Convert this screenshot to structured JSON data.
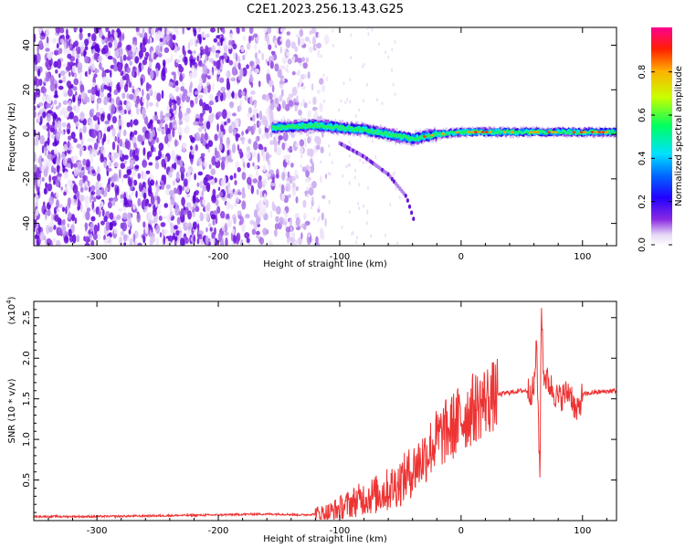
{
  "title": "C2E1.2023.256.13.43.G25",
  "chart_data": [
    {
      "type": "heatmap",
      "xlabel": "Height of straight line (km)",
      "ylabel": "Frequency (Hz)",
      "xlim": [
        -352,
        128
      ],
      "ylim": [
        -50,
        48
      ],
      "x_ticks": [
        -300,
        -200,
        -100,
        0,
        100
      ],
      "y_ticks": [
        -40,
        -20,
        0,
        20,
        40
      ],
      "colorbar": {
        "label": "Normalized spectral amplitude",
        "range": [
          0,
          1
        ],
        "ticks": [
          "0.0",
          "0.2",
          "0.4",
          "0.6",
          "0.8"
        ]
      },
      "features": [
        {
          "description_key": "noise",
          "x_range": [
            -352,
            -140
          ],
          "y_range": [
            -50,
            48
          ]
        },
        {
          "description_key": "signal_band",
          "x": [
            -155,
            -120,
            -100,
            -80,
            -60,
            -40,
            -20,
            0,
            50,
            100,
            128
          ],
          "y": [
            3,
            4,
            3,
            2,
            0,
            -2,
            0,
            1,
            1,
            1,
            1
          ]
        },
        {
          "description_key": "tail",
          "x": [
            -100,
            -80,
            -60,
            -45,
            -38
          ],
          "y": [
            -4,
            -10,
            -18,
            -28,
            -40
          ]
        }
      ]
    },
    {
      "type": "line",
      "xlabel": "Height of straight line (km)",
      "ylabel": "SNR (10 * v/v)",
      "y_multiplier": "(x10",
      "y_multiplier_exp": "4",
      "y_multiplier_close": ")",
      "xlim": [
        -352,
        128
      ],
      "ylim": [
        0,
        2.7
      ],
      "x_ticks": [
        -300,
        -200,
        -100,
        0,
        100
      ],
      "y_ticks": [
        0.5,
        1.0,
        1.5,
        2.0,
        2.5
      ],
      "y_tick_labels": [
        "0.5",
        "1.0",
        "1.5",
        "2.0",
        "2.5"
      ],
      "series": [
        {
          "color": "#ee3333",
          "x": [
            -352,
            -300,
            -250,
            -200,
            -170,
            -150,
            -130,
            -110,
            -100,
            -90,
            -80,
            -70,
            -60,
            -50,
            -40,
            -30,
            -20,
            -10,
            0,
            10,
            20,
            30,
            40,
            50,
            60,
            62,
            65,
            66,
            68,
            72,
            80,
            90,
            95,
            100,
            110,
            128
          ],
          "y": [
            0.05,
            0.05,
            0.06,
            0.07,
            0.08,
            0.08,
            0.07,
            0.09,
            0.15,
            0.22,
            0.28,
            0.32,
            0.38,
            0.48,
            0.62,
            0.8,
            1.0,
            1.12,
            1.25,
            1.38,
            1.48,
            1.55,
            1.58,
            1.6,
            1.6,
            2.2,
            0.5,
            2.7,
            1.8,
            1.7,
            1.5,
            1.6,
            1.3,
            1.55,
            1.58,
            1.6
          ]
        }
      ]
    }
  ]
}
